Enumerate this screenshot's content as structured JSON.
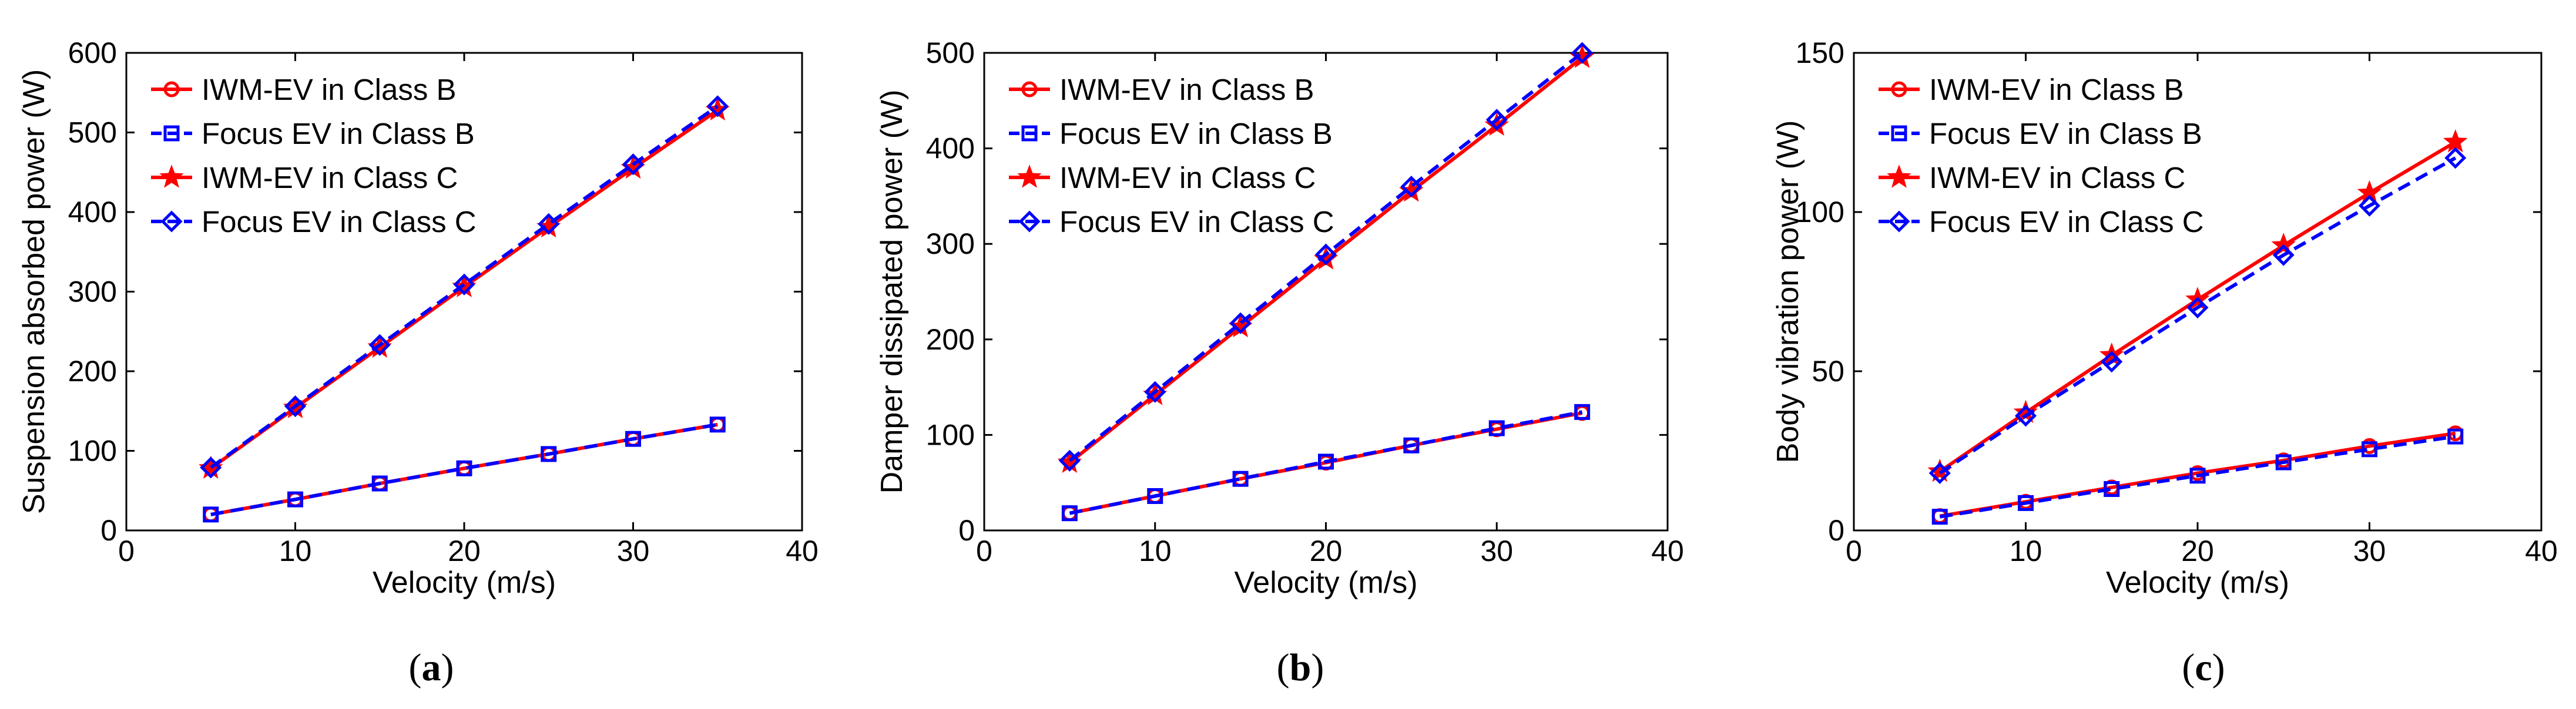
{
  "colors": {
    "red": "#ff0000",
    "blue": "#0000ff",
    "axis": "#000000"
  },
  "chart_data": [
    {
      "type": "line",
      "caption": "a",
      "xlabel": "Velocity (m/s)",
      "ylabel": "Suspension absorbed power (W)",
      "xlim": [
        0,
        40
      ],
      "ylim": [
        0,
        600
      ],
      "xticks": [
        0,
        10,
        20,
        30,
        40
      ],
      "yticks": [
        0,
        100,
        200,
        300,
        400,
        500,
        600
      ],
      "legend_position": "top-left",
      "x": [
        5,
        10,
        15,
        20,
        25,
        30,
        35
      ],
      "series": [
        {
          "name": "IWM-EV in Class B",
          "color": "#ff0000",
          "dash": "solid",
          "marker": "circle",
          "values": [
            20,
            39,
            59,
            78,
            96,
            115,
            133
          ]
        },
        {
          "name": "Focus EV in Class B",
          "color": "#0000ff",
          "dash": "dashed",
          "marker": "square",
          "values": [
            20,
            39,
            59,
            78,
            96,
            115,
            133
          ]
        },
        {
          "name": "IWM-EV in Class C",
          "color": "#ff0000",
          "dash": "solid",
          "marker": "star",
          "values": [
            78,
            154,
            230,
            306,
            381,
            455,
            528
          ]
        },
        {
          "name": "Focus EV in Class C",
          "color": "#0000ff",
          "dash": "dashed",
          "marker": "diamond",
          "values": [
            79,
            156,
            233,
            309,
            385,
            460,
            533
          ]
        }
      ]
    },
    {
      "type": "line",
      "caption": "b",
      "xlabel": "Velocity (m/s)",
      "ylabel": "Damper dissipated power (W)",
      "xlim": [
        0,
        40
      ],
      "ylim": [
        0,
        500
      ],
      "xticks": [
        0,
        10,
        20,
        30,
        40
      ],
      "yticks": [
        0,
        100,
        200,
        300,
        400,
        500
      ],
      "legend_position": "top-left",
      "x": [
        5,
        10,
        15,
        20,
        25,
        30,
        35
      ],
      "series": [
        {
          "name": "IWM-EV in Class B",
          "color": "#ff0000",
          "dash": "solid",
          "marker": "circle",
          "values": [
            18,
            36,
            54,
            71,
            89,
            106,
            123
          ]
        },
        {
          "name": "Focus EV in Class B",
          "color": "#0000ff",
          "dash": "dashed",
          "marker": "square",
          "values": [
            18,
            36,
            54,
            72,
            89,
            107,
            124
          ]
        },
        {
          "name": "IWM-EV in Class C",
          "color": "#ff0000",
          "dash": "solid",
          "marker": "star",
          "values": [
            71,
            142,
            213,
            284,
            355,
            424,
            495
          ]
        },
        {
          "name": "Focus EV in Class C",
          "color": "#0000ff",
          "dash": "dashed",
          "marker": "diamond",
          "values": [
            73,
            145,
            217,
            289,
            360,
            430,
            500
          ]
        }
      ]
    },
    {
      "type": "line",
      "caption": "c",
      "xlabel": "Velocity (m/s)",
      "ylabel": "Body vibration power (W)",
      "xlim": [
        0,
        40
      ],
      "ylim": [
        0,
        150
      ],
      "xticks": [
        0,
        10,
        20,
        30,
        40
      ],
      "yticks": [
        0,
        50,
        100,
        150
      ],
      "legend_position": "top-left",
      "x": [
        5,
        10,
        15,
        20,
        25,
        30,
        35
      ],
      "series": [
        {
          "name": "IWM-EV in Class B",
          "color": "#ff0000",
          "dash": "solid",
          "marker": "circle",
          "values": [
            4.5,
            9,
            13.5,
            18,
            22,
            26.5,
            30.5
          ]
        },
        {
          "name": "Focus EV in Class B",
          "color": "#0000ff",
          "dash": "dashed",
          "marker": "square",
          "values": [
            4.3,
            8.6,
            13,
            17.2,
            21.4,
            25.5,
            29.5
          ]
        },
        {
          "name": "IWM-EV in Class C",
          "color": "#ff0000",
          "dash": "solid",
          "marker": "star",
          "values": [
            18.5,
            37,
            55,
            72.5,
            89.5,
            106,
            122
          ]
        },
        {
          "name": "Focus EV in Class C",
          "color": "#0000ff",
          "dash": "dashed",
          "marker": "diamond",
          "values": [
            18,
            36,
            53,
            70,
            86.5,
            102,
            117
          ]
        }
      ]
    }
  ]
}
